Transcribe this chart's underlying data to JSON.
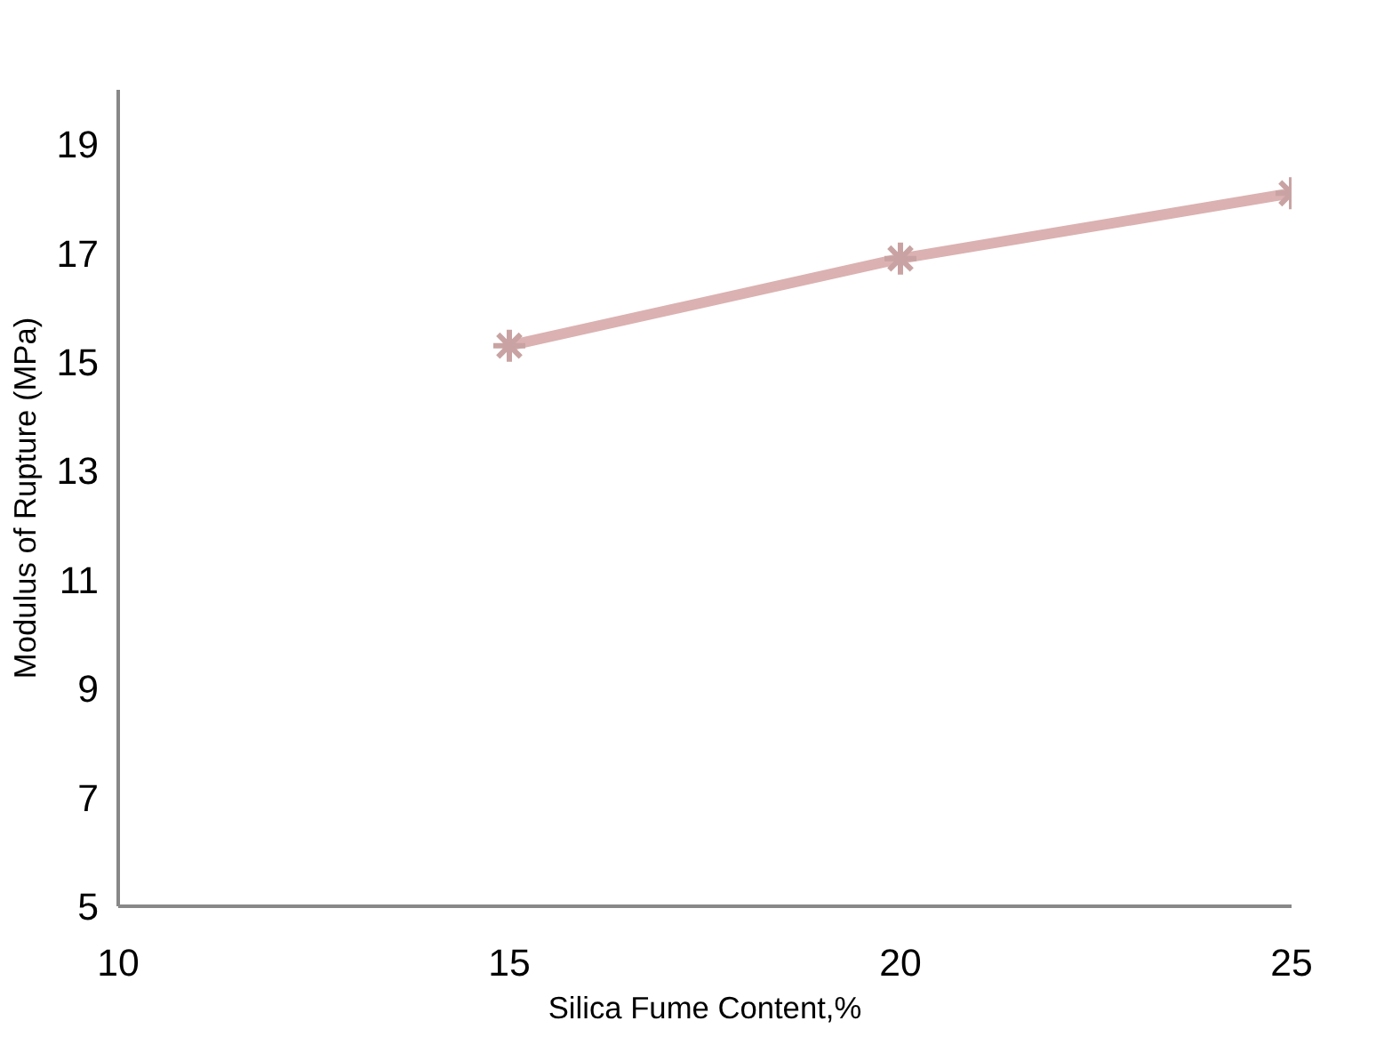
{
  "chart_data": {
    "type": "line",
    "xlabel": "Silica Fume Content,%",
    "ylabel": "Modulus of Rupture (MPa)",
    "x": [
      15,
      20,
      25
    ],
    "series": [
      {
        "color": "#dbb1b1",
        "values": [
          15.3,
          16.9,
          18.1
        ]
      }
    ],
    "xlim": [
      10,
      25
    ],
    "xticks": [
      10,
      15,
      20,
      25
    ],
    "ylim": [
      5,
      20
    ],
    "yticks": [
      5,
      7,
      9,
      11,
      13,
      15,
      17,
      19
    ],
    "grid": false,
    "marker": "cross",
    "line_style": "solid"
  }
}
